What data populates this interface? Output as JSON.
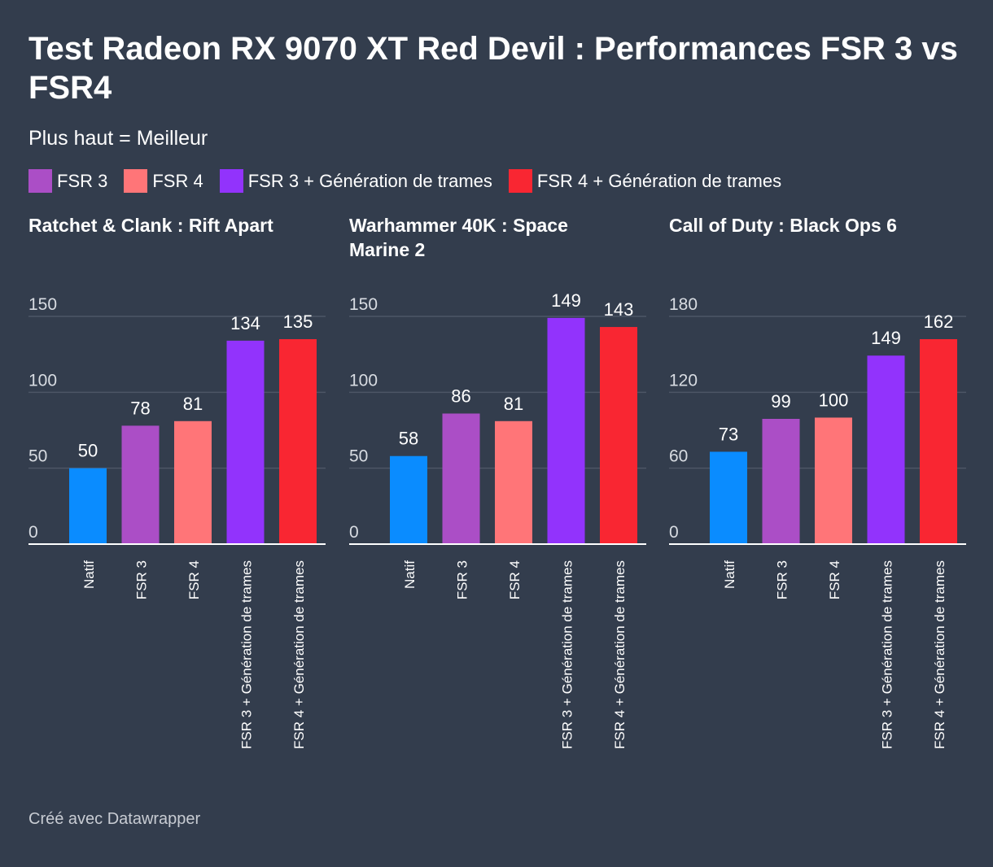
{
  "title": "Test Radeon RX 9070 XT Red Devil : Performances FSR 3 vs FSR4",
  "subtitle": "Plus haut = Meilleur",
  "legend": [
    {
      "label": "FSR 3",
      "color": "#ab4ec6"
    },
    {
      "label": "FSR 4",
      "color": "#ff7578"
    },
    {
      "label": "FSR 3 + Génération de trames",
      "color": "#9233fc"
    },
    {
      "label": "FSR 4 + Génération de trames",
      "color": "#f92632"
    }
  ],
  "footer": "Créé avec Datawrapper",
  "chart_data": [
    {
      "type": "bar",
      "title": "Ratchet & Clank : Rift Apart",
      "categories": [
        "Natif",
        "FSR 3",
        "FSR 4",
        "FSR 3 + Génération de trames",
        "FSR 4 + Génération de trames"
      ],
      "values": [
        50,
        78,
        81,
        134,
        135
      ],
      "colors": [
        "#0a8cff",
        "#ab4ec6",
        "#ff7578",
        "#9233fc",
        "#f92632"
      ],
      "yticks": [
        0,
        50,
        100,
        150
      ],
      "ylim": [
        0,
        150
      ]
    },
    {
      "type": "bar",
      "title": "Warhammer 40K : Space Marine 2",
      "categories": [
        "Natif",
        "FSR 3",
        "FSR 4",
        "FSR 3 + Génération de trames",
        "FSR 4 + Génération de trames"
      ],
      "values": [
        58,
        86,
        81,
        149,
        143
      ],
      "colors": [
        "#0a8cff",
        "#ab4ec6",
        "#ff7578",
        "#9233fc",
        "#f92632"
      ],
      "yticks": [
        0,
        50,
        100,
        150
      ],
      "ylim": [
        0,
        150
      ]
    },
    {
      "type": "bar",
      "title": "Call of Duty : Black Ops 6",
      "categories": [
        "Natif",
        "FSR 3",
        "FSR 4",
        "FSR 3 + Génération de trames",
        "FSR 4 + Génération de trames"
      ],
      "values": [
        73,
        99,
        100,
        149,
        162
      ],
      "colors": [
        "#0a8cff",
        "#ab4ec6",
        "#ff7578",
        "#9233fc",
        "#f92632"
      ],
      "yticks": [
        0,
        60,
        120,
        180
      ],
      "ylim": [
        0,
        180
      ]
    }
  ]
}
